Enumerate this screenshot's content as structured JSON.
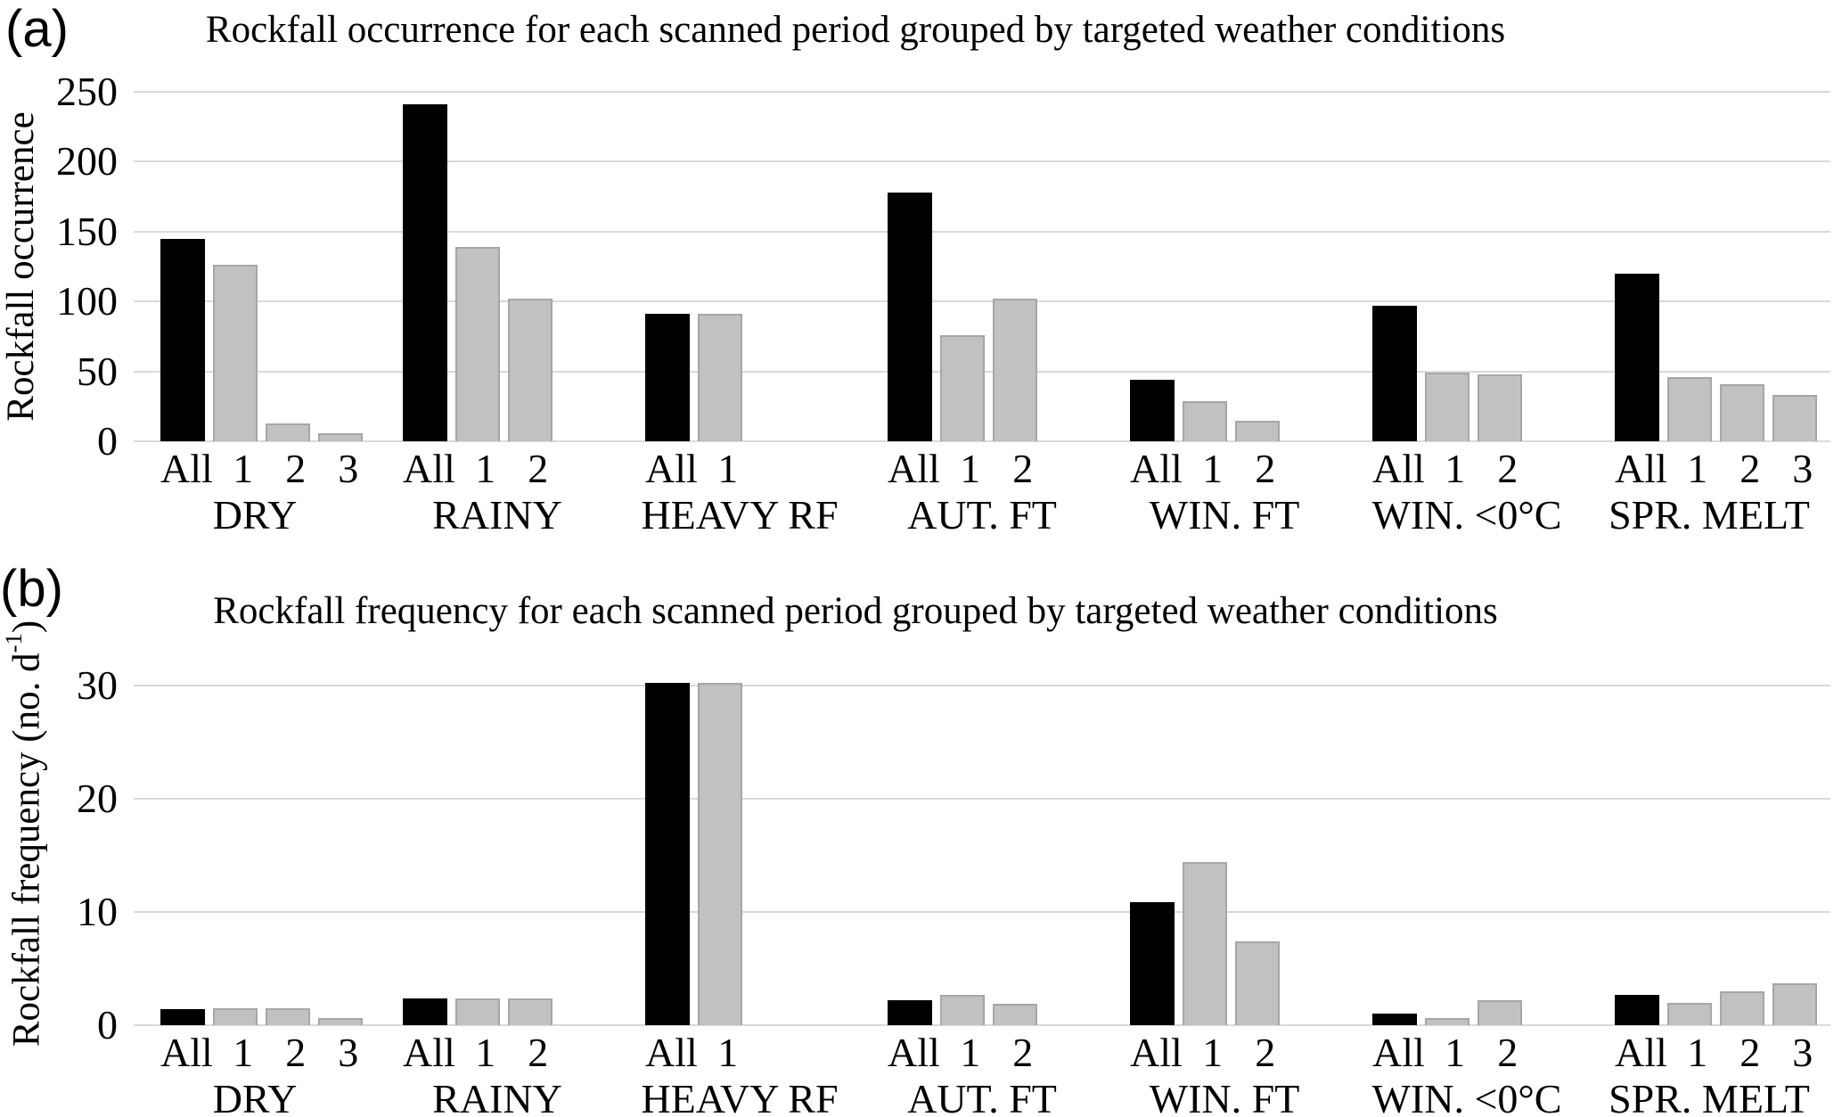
{
  "figure": {
    "panel_a_letter": "(a)",
    "panel_b_letter": "(b)"
  },
  "colors": {
    "all_series_fill": "#000000",
    "period_series_fill": "#c1c1c1",
    "period_series_border": "#a6a6a6",
    "gridline": "#d9d9d9",
    "text": "#000000",
    "background": "#ffffff"
  },
  "chart_data": [
    {
      "id": "occurrence",
      "type": "bar",
      "panel": "(a)",
      "title": "Rockfall occurrence for each scanned period grouped by targeted weather conditions",
      "ylabel": {
        "prefix": "Rockfall occurrence",
        "sup": "",
        "suffix": ""
      },
      "yticks": [
        0,
        50,
        100,
        150,
        200,
        250
      ],
      "ylim": [
        0,
        250
      ],
      "grid": true,
      "legend": "none",
      "series_note": "All = black bar, numbered scanned periods = gray bars",
      "groups": [
        {
          "label": "DRY",
          "bars": [
            {
              "x": "All",
              "value": 145
            },
            {
              "x": "1",
              "value": 126
            },
            {
              "x": "2",
              "value": 13
            },
            {
              "x": "3",
              "value": 6
            }
          ]
        },
        {
          "label": "RAINY",
          "bars": [
            {
              "x": "All",
              "value": 241
            },
            {
              "x": "1",
              "value": 139
            },
            {
              "x": "2",
              "value": 102
            }
          ]
        },
        {
          "label": "HEAVY RF",
          "bars": [
            {
              "x": "All",
              "value": 91
            },
            {
              "x": "1",
              "value": 91
            }
          ]
        },
        {
          "label": "AUT. FT",
          "bars": [
            {
              "x": "All",
              "value": 178
            },
            {
              "x": "1",
              "value": 76
            },
            {
              "x": "2",
              "value": 102
            }
          ]
        },
        {
          "label": "WIN. FT",
          "bars": [
            {
              "x": "All",
              "value": 44
            },
            {
              "x": "1",
              "value": 29
            },
            {
              "x": "2",
              "value": 15
            }
          ]
        },
        {
          "label": "WIN. <0°C",
          "bars": [
            {
              "x": "All",
              "value": 97
            },
            {
              "x": "1",
              "value": 49
            },
            {
              "x": "2",
              "value": 48
            }
          ]
        },
        {
          "label": "SPR. MELT",
          "bars": [
            {
              "x": "All",
              "value": 120
            },
            {
              "x": "1",
              "value": 46
            },
            {
              "x": "2",
              "value": 41
            },
            {
              "x": "3",
              "value": 33
            }
          ]
        }
      ]
    },
    {
      "id": "frequency",
      "type": "bar",
      "panel": "(b)",
      "title": "Rockfall frequency for each scanned period grouped by targeted weather conditions",
      "ylabel": {
        "prefix": "Rockfall frequency (no. d",
        "sup": "-1",
        "suffix": ")"
      },
      "yticks": [
        0,
        10,
        20,
        30
      ],
      "ylim": [
        0,
        33.9
      ],
      "grid": true,
      "legend": "none",
      "series_note": "All = black bar, numbered scanned periods = gray bars",
      "groups": [
        {
          "label": "DRY",
          "bars": [
            {
              "x": "All",
              "value": 1.4
            },
            {
              "x": "1",
              "value": 1.5
            },
            {
              "x": "2",
              "value": 1.5
            },
            {
              "x": "3",
              "value": 0.6
            }
          ]
        },
        {
          "label": "RAINY",
          "bars": [
            {
              "x": "All",
              "value": 2.4
            },
            {
              "x": "1",
              "value": 2.4
            },
            {
              "x": "2",
              "value": 2.4
            }
          ]
        },
        {
          "label": "HEAVY RF",
          "bars": [
            {
              "x": "All",
              "value": 30.3
            },
            {
              "x": "1",
              "value": 30.3
            }
          ]
        },
        {
          "label": "AUT. FT",
          "bars": [
            {
              "x": "All",
              "value": 2.2
            },
            {
              "x": "1",
              "value": 2.7
            },
            {
              "x": "2",
              "value": 1.9
            }
          ]
        },
        {
          "label": "WIN. FT",
          "bars": [
            {
              "x": "All",
              "value": 10.9
            },
            {
              "x": "1",
              "value": 14.4
            },
            {
              "x": "2",
              "value": 7.4
            }
          ]
        },
        {
          "label": "WIN. <0°C",
          "bars": [
            {
              "x": "All",
              "value": 1.0
            },
            {
              "x": "1",
              "value": 0.6
            },
            {
              "x": "2",
              "value": 2.2
            }
          ]
        },
        {
          "label": "SPR. MELT",
          "bars": [
            {
              "x": "All",
              "value": 2.7
            },
            {
              "x": "1",
              "value": 2.0
            },
            {
              "x": "2",
              "value": 3.0
            },
            {
              "x": "3",
              "value": 3.7
            }
          ]
        }
      ]
    }
  ]
}
